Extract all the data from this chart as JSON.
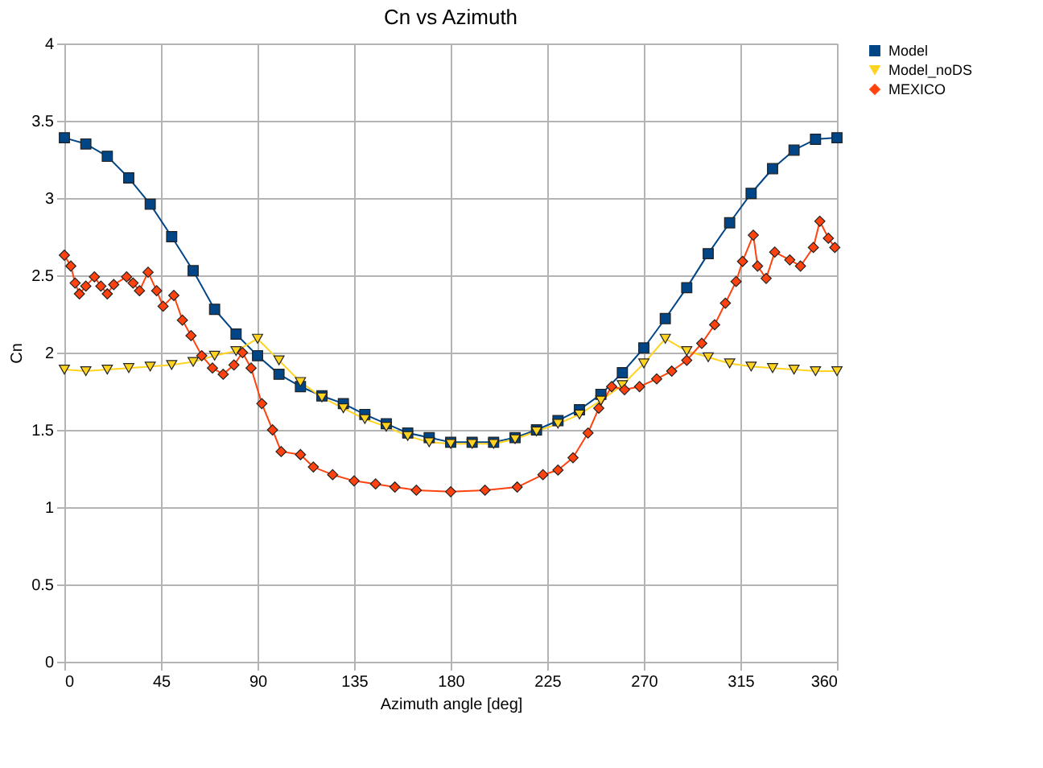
{
  "chart_data": {
    "type": "line",
    "title": "Cn vs Azimuth",
    "xlabel": "Azimuth angle [deg]",
    "ylabel": "Cn",
    "xlim": [
      0,
      360
    ],
    "xticks": [
      0,
      45,
      90,
      135,
      180,
      225,
      270,
      315,
      360
    ],
    "ylim": [
      0,
      4
    ],
    "yticks": [
      0,
      0.5,
      1,
      1.5,
      2,
      2.5,
      3,
      3.5,
      4
    ],
    "grid": true,
    "legend": "right",
    "line_style": "solid",
    "series": [
      {
        "name": "Model",
        "color": "#004586",
        "marker": "square",
        "x": [
          0,
          10,
          20,
          30,
          40,
          50,
          60,
          70,
          80,
          90,
          100,
          110,
          120,
          130,
          140,
          150,
          160,
          170,
          180,
          190,
          200,
          210,
          220,
          230,
          240,
          250,
          260,
          270,
          280,
          290,
          300,
          310,
          320,
          330,
          340,
          350,
          360
        ],
        "values": [
          3.39,
          3.35,
          3.27,
          3.13,
          2.96,
          2.75,
          2.53,
          2.28,
          2.12,
          1.98,
          1.86,
          1.78,
          1.72,
          1.67,
          1.6,
          1.54,
          1.48,
          1.45,
          1.42,
          1.42,
          1.42,
          1.45,
          1.5,
          1.56,
          1.63,
          1.73,
          1.87,
          2.03,
          2.22,
          2.42,
          2.64,
          2.84,
          3.03,
          3.19,
          3.31,
          3.38,
          3.39
        ]
      },
      {
        "name": "Model_noDS",
        "color": "#ffd320",
        "marker": "triangle",
        "x": [
          0,
          10,
          20,
          30,
          40,
          50,
          60,
          70,
          80,
          90,
          100,
          110,
          120,
          130,
          140,
          150,
          160,
          170,
          180,
          190,
          200,
          210,
          220,
          230,
          240,
          250,
          260,
          270,
          280,
          290,
          300,
          310,
          320,
          330,
          340,
          350,
          360
        ],
        "values": [
          1.89,
          1.88,
          1.89,
          1.9,
          1.91,
          1.92,
          1.94,
          1.98,
          2.01,
          2.09,
          1.95,
          1.81,
          1.71,
          1.64,
          1.57,
          1.52,
          1.46,
          1.42,
          1.41,
          1.41,
          1.41,
          1.44,
          1.49,
          1.54,
          1.6,
          1.69,
          1.79,
          1.93,
          2.09,
          2.01,
          1.97,
          1.93,
          1.91,
          1.9,
          1.89,
          1.88,
          1.88
        ]
      },
      {
        "name": "MEXICO",
        "color": "#ff420e",
        "marker": "diamond",
        "x": [
          0,
          3,
          5,
          7,
          10,
          14,
          17,
          20,
          23,
          29,
          32,
          35,
          39,
          43,
          46,
          51,
          55,
          59,
          64,
          69,
          74,
          79,
          83,
          87,
          92,
          97,
          101,
          110,
          116,
          125,
          135,
          145,
          154,
          164,
          180,
          196,
          211,
          223,
          230,
          237,
          244,
          249,
          255,
          261,
          268,
          276,
          283,
          290,
          297,
          303,
          308,
          313,
          316,
          321,
          323,
          327,
          331,
          338,
          343,
          349,
          352,
          356,
          359
        ],
        "values": [
          2.63,
          2.56,
          2.45,
          2.38,
          2.43,
          2.49,
          2.43,
          2.38,
          2.44,
          2.49,
          2.45,
          2.4,
          2.52,
          2.4,
          2.3,
          2.37,
          2.21,
          2.11,
          1.98,
          1.9,
          1.86,
          1.92,
          2.0,
          1.9,
          1.67,
          1.5,
          1.36,
          1.34,
          1.26,
          1.21,
          1.17,
          1.15,
          1.13,
          1.11,
          1.1,
          1.11,
          1.13,
          1.21,
          1.24,
          1.32,
          1.48,
          1.64,
          1.78,
          1.76,
          1.78,
          1.83,
          1.88,
          1.95,
          2.06,
          2.18,
          2.32,
          2.46,
          2.59,
          2.76,
          2.56,
          2.48,
          2.65,
          2.6,
          2.56,
          2.68,
          2.85,
          2.74,
          2.68
        ]
      }
    ]
  }
}
